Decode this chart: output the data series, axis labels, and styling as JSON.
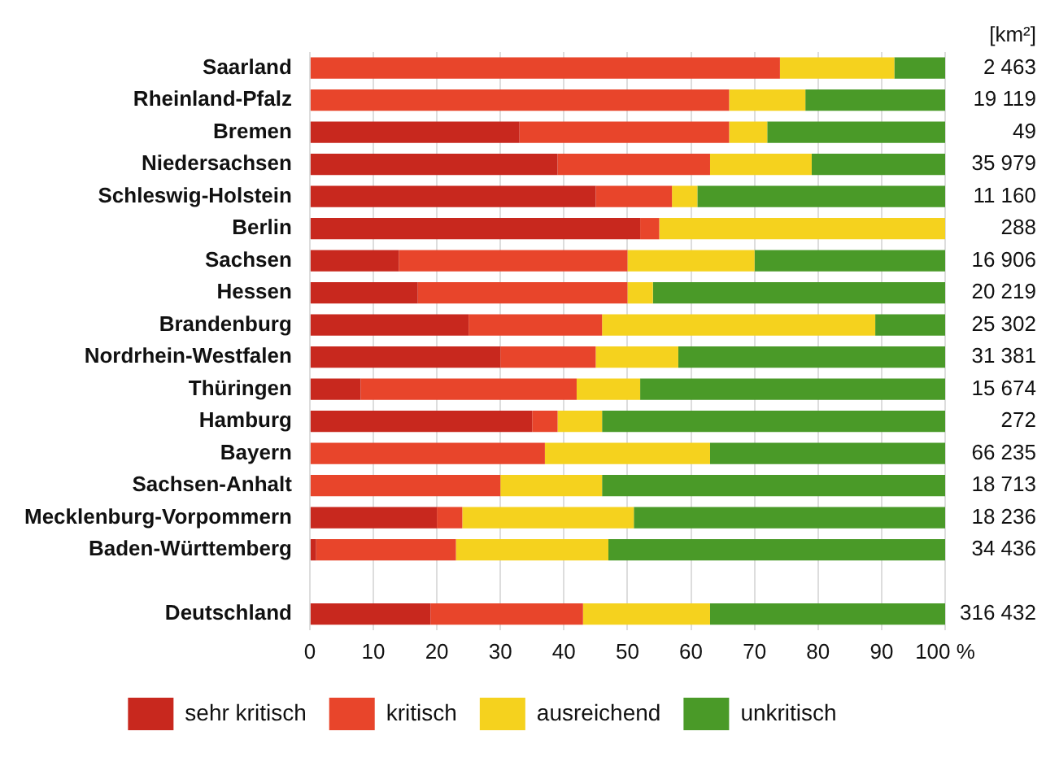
{
  "chart_data": {
    "type": "bar",
    "orientation": "horizontal",
    "stacked": true,
    "categories": [
      "Saarland",
      "Rheinland-Pfalz",
      "Bremen",
      "Niedersachsen",
      "Schleswig-Holstein",
      "Berlin",
      "Sachsen",
      "Hessen",
      "Brandenburg",
      "Nordrhein-Westfalen",
      "Thüringen",
      "Hamburg",
      "Bayern",
      "Sachsen-Anhalt",
      "Mecklenburg-Vorpommern",
      "Baden-Württemberg",
      null,
      "Deutschland"
    ],
    "series": [
      {
        "name": "sehr kritisch",
        "color": "#c8281e",
        "values": [
          0,
          0,
          33,
          39,
          45,
          52,
          14,
          17,
          25,
          30,
          8,
          35,
          0,
          0,
          20,
          1,
          null,
          19
        ]
      },
      {
        "name": "kritisch",
        "color": "#e8452b",
        "values": [
          74,
          66,
          33,
          24,
          12,
          3,
          36,
          33,
          21,
          15,
          34,
          4,
          37,
          30,
          4,
          22,
          null,
          24
        ]
      },
      {
        "name": "ausreichend",
        "color": "#f5d21e",
        "values": [
          18,
          12,
          6,
          16,
          4,
          45,
          20,
          4,
          43,
          13,
          10,
          7,
          26,
          16,
          27,
          24,
          null,
          20
        ]
      },
      {
        "name": "unkritisch",
        "color": "#4a9a28",
        "values": [
          8,
          22,
          28,
          21,
          39,
          0,
          30,
          46,
          11,
          42,
          48,
          54,
          37,
          54,
          49,
          53,
          null,
          37
        ]
      }
    ],
    "xlim": [
      0,
      100
    ],
    "xticks": [
      0,
      10,
      20,
      30,
      40,
      50,
      60,
      70,
      80,
      90,
      {
        "value": 100,
        "label": "100 %"
      }
    ],
    "grid": "x",
    "legend": "bottom",
    "annotations": [
      "[km²]",
      "2 463",
      "19 119",
      "49",
      "35 979",
      "11 160",
      "288",
      "16 906",
      "20 219",
      "25 302",
      "31 381",
      "15 674",
      "272",
      "66 235",
      "18 713",
      "18 236",
      "34 436",
      "316 432"
    ]
  }
}
